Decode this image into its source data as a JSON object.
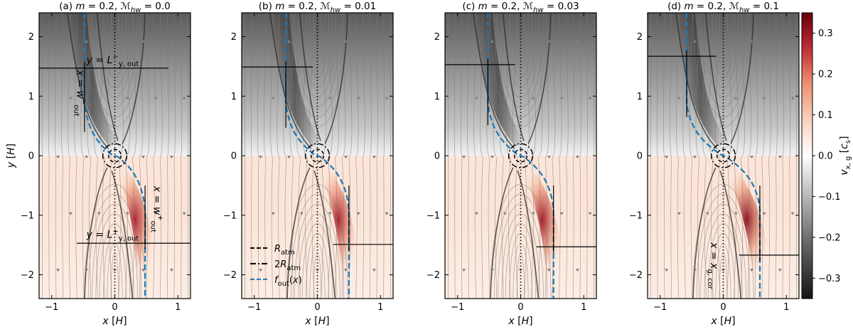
{
  "chart_data": {
    "type": "streamplot",
    "panels": [
      {
        "id": "a",
        "title": "(a) m = 0.2,  ℳhw = 0.0",
        "mhw": 0.0,
        "y_out_minus": 1.47,
        "y_out_plus": -1.47,
        "w_out": 0.48,
        "annotations": [
          "y = L⁻ y,out",
          "y = L⁺ y,out",
          "x = w⁻ out",
          "x = w⁺ out"
        ]
      },
      {
        "id": "b",
        "title": "(b) m = 0.2,  ℳhw = 0.01",
        "mhw": 0.01,
        "y_out_minus": 1.49,
        "y_out_plus": -1.49,
        "w_out": 0.5,
        "annotations": []
      },
      {
        "id": "c",
        "title": "(c) m = 0.2,  ℳhw = 0.03",
        "mhw": 0.03,
        "y_out_minus": 1.53,
        "y_out_plus": -1.53,
        "w_out": 0.52,
        "annotations": []
      },
      {
        "id": "d",
        "title": "(d) m = 0.2,  ℳhw = 0.1",
        "mhw": 0.1,
        "y_out_minus": 1.67,
        "y_out_plus": -1.67,
        "w_out": 0.58,
        "annotations": [
          "x = x g,cor"
        ]
      }
    ],
    "xlabel": "x [H]",
    "ylabel": "y [H]",
    "xlim": [
      -1.2,
      1.2
    ],
    "ylim": [
      -2.4,
      2.4
    ],
    "xticks": [
      -1,
      0,
      1
    ],
    "yticks": [
      -2,
      -1,
      0,
      1,
      2
    ],
    "legend": {
      "location": "lower-left of panel (b)",
      "entries": [
        {
          "label": "R atm",
          "style": "dashed",
          "color": "#000000"
        },
        {
          "label": "2R atm",
          "style": "dashdot",
          "color": "#000000"
        },
        {
          "label": "f out(x)",
          "style": "dashed",
          "color": "#1f77b4"
        }
      ]
    },
    "colorbar": {
      "label": "v x,g [c s]",
      "vmin": -0.35,
      "vmax": 0.35,
      "ticks": [
        -0.3,
        -0.2,
        -0.1,
        0.0,
        0.1,
        0.2,
        0.3
      ],
      "colormap": "diverging gray-white-red"
    },
    "colors": {
      "blue": "#1f77b4",
      "red_dark": "#67000d",
      "gray_dark": "#111111"
    }
  }
}
